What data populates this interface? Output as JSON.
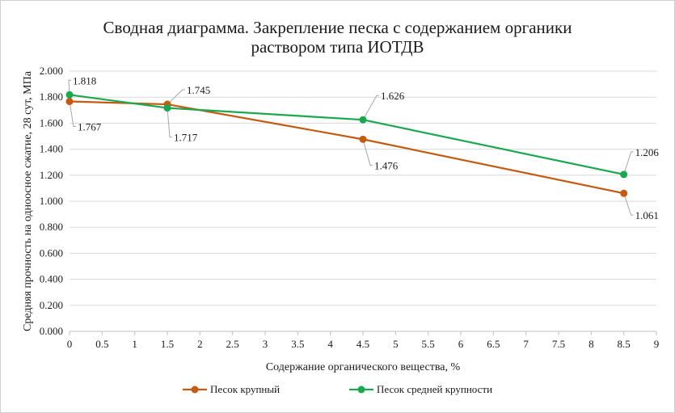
{
  "chart_data": {
    "type": "line",
    "title": "Сводная диаграмма. Закрепление песка с содержанием органики",
    "subtitle": "раствором типа ИОТДВ",
    "xlabel": "Содержание органического вещества, %",
    "ylabel": "Средняя прочность на одноосное сжатие, 28 сут, МПа",
    "xlim": [
      0,
      9
    ],
    "ylim": [
      0,
      2
    ],
    "x_ticks": [
      "0",
      "0.5",
      "1",
      "1.5",
      "2",
      "2.5",
      "3",
      "3.5",
      "4",
      "4.5",
      "5",
      "5.5",
      "6",
      "6.5",
      "7",
      "7.5",
      "8",
      "8.5",
      "9"
    ],
    "y_ticks": [
      "0.000",
      "0.200",
      "0.400",
      "0.600",
      "0.800",
      "1.000",
      "1.200",
      "1.400",
      "1.600",
      "1.800",
      "2.000"
    ],
    "grid": "horizontal",
    "legend_position": "bottom",
    "series": [
      {
        "name": "Песок крупный",
        "color": "#c55a11",
        "x": [
          0,
          1.5,
          4.5,
          8.5
        ],
        "y": [
          1.767,
          1.745,
          1.476,
          1.061
        ],
        "labels": [
          "1.767",
          "1.745",
          "1.476",
          "1.061"
        ]
      },
      {
        "name": "Песок средней крупности",
        "color": "#1aa84f",
        "x": [
          0,
          1.5,
          4.5,
          8.5
        ],
        "y": [
          1.818,
          1.717,
          1.626,
          1.206
        ],
        "labels": [
          "1.818",
          "1.717",
          "1.626",
          "1.206"
        ]
      }
    ]
  }
}
